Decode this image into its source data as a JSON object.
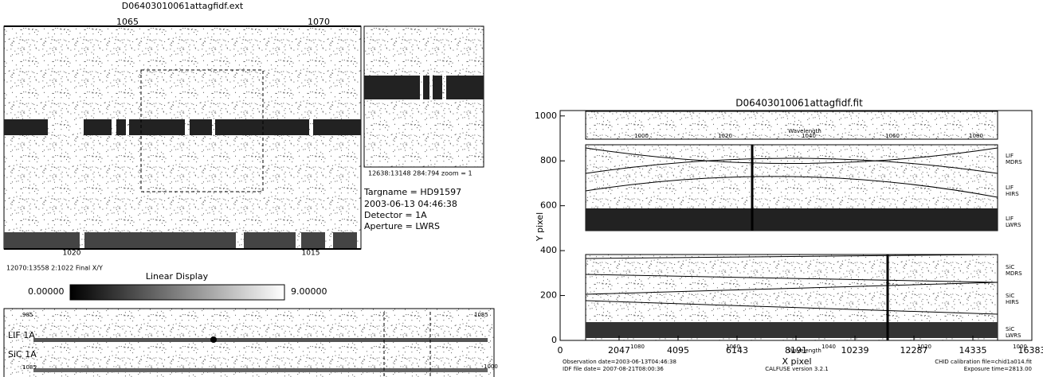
{
  "left": {
    "title": "D06403010061attagfidf.ext",
    "top_axis": [
      "1065",
      "1070"
    ],
    "bottom_axis": [
      "1020",
      "1015"
    ],
    "coords": "12070:13558  2:1022 Final X/Y",
    "zoom_caption": "12638:13148  284:794  zoom = 1",
    "info": [
      "Targname = HD91597",
      "2003-06-13 04:46:38",
      "Detector = 1A",
      "Aperture = LWRS"
    ],
    "colorbar": {
      "title": "Linear Display",
      "min": "0.00000",
      "max": "9.00000"
    },
    "strip": {
      "top_axis": [
        "985",
        "1085"
      ],
      "rows": [
        "LIF  1A",
        "SiC  1A"
      ],
      "bottom_axis": [
        "1085",
        "1000"
      ]
    }
  },
  "right": {
    "title": "D06403010061attagfidf.fit",
    "y_label": "Y pixel",
    "x_label": "X pixel",
    "xlim": [
      0,
      16383
    ],
    "xticks": [
      0,
      2047,
      4095,
      6143,
      8191,
      10239,
      12287,
      14335,
      16383
    ],
    "ylim": [
      0,
      1024
    ],
    "yticks": [
      0,
      200,
      400,
      600,
      800,
      1000
    ],
    "wavelength_label": "Wavelength",
    "wavelength_top": [
      "1000",
      "1020",
      "1040",
      "1060",
      "1080"
    ],
    "wavelength_bottom": [
      "1080",
      "1060",
      "1040",
      "1020",
      "1000"
    ],
    "apertures": [
      "LIF MDRS",
      "LIF HIRS",
      "LIF LWRS",
      "SiC MDRS",
      "SiC HIRS",
      "SiC LWRS"
    ],
    "footer_left": [
      "Observation date=2003-06-13T04:46:38",
      "IDF file date= 2007-08-21T08:00:36"
    ],
    "footer_center": "CALFUSE version 3.2.1",
    "footer_right": [
      "CHID calibration file=chid1a014.fit",
      "Exposure time=2813.00"
    ]
  }
}
